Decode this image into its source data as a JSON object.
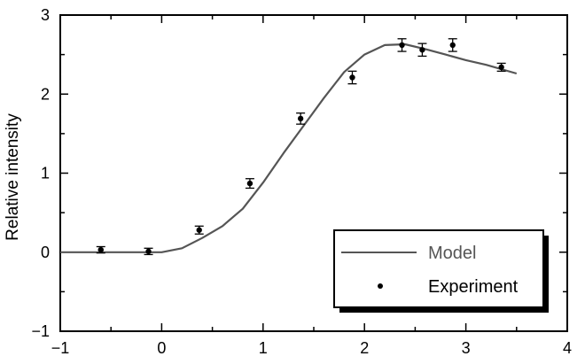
{
  "chart_data": {
    "type": "scatter",
    "title": "",
    "xlabel": "",
    "ylabel": "Relative intensity",
    "xlim": [
      -1,
      4
    ],
    "ylim": [
      -1,
      3
    ],
    "xticks": [
      -1,
      0,
      1,
      2,
      3,
      4
    ],
    "xtick_labels": [
      "−1",
      "0",
      "1",
      "2",
      "3",
      "4"
    ],
    "yticks": [
      -1,
      0,
      1,
      2,
      3
    ],
    "ytick_labels": [
      "−1",
      "0",
      "1",
      "2",
      "3"
    ],
    "grid": false,
    "legend_position": "bottom-right",
    "series": [
      {
        "name": "Model",
        "type": "line",
        "color": "#555555",
        "x": [
          -1.0,
          -0.6,
          -0.2,
          0.0,
          0.2,
          0.4,
          0.6,
          0.8,
          1.0,
          1.2,
          1.4,
          1.6,
          1.8,
          2.0,
          2.2,
          2.4,
          2.6,
          2.8,
          3.0,
          3.2,
          3.5
        ],
        "y": [
          0.0,
          0.0,
          0.0,
          0.0,
          0.05,
          0.18,
          0.33,
          0.55,
          0.88,
          1.25,
          1.6,
          1.95,
          2.28,
          2.5,
          2.62,
          2.63,
          2.57,
          2.5,
          2.43,
          2.37,
          2.26
        ]
      },
      {
        "name": "Experiment",
        "type": "scatter",
        "color": "#000000",
        "x": [
          -0.6,
          -0.13,
          0.37,
          0.87,
          1.37,
          1.88,
          2.37,
          2.57,
          2.87,
          3.35
        ],
        "y": [
          0.03,
          0.01,
          0.28,
          0.87,
          1.69,
          2.21,
          2.62,
          2.56,
          2.62,
          2.34
        ],
        "yerr": [
          0.04,
          0.04,
          0.05,
          0.06,
          0.07,
          0.08,
          0.08,
          0.08,
          0.08,
          0.05
        ]
      }
    ]
  }
}
